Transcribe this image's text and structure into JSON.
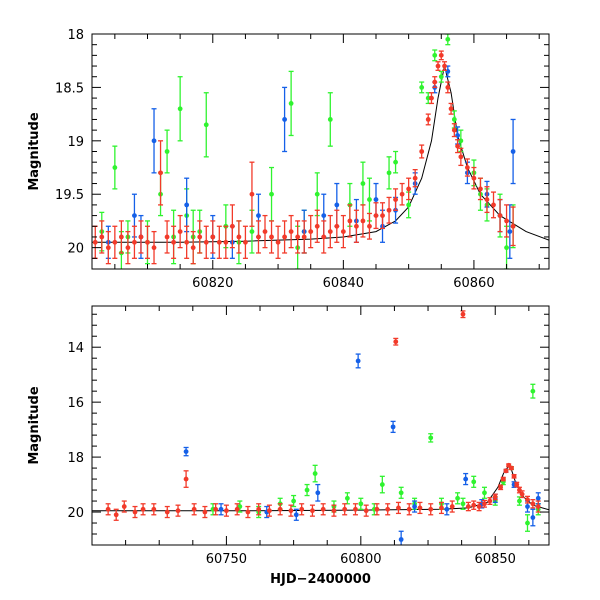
{
  "colors": {
    "green": "#2ff32f",
    "blue": "#1560e8",
    "red": "#f23a2a",
    "model_line": "#000000",
    "axes": "#000000"
  },
  "chart_data": [
    {
      "type": "scatter",
      "panel": "top",
      "ylabel": "Magnitude",
      "xlabel": "",
      "xlim": [
        60801.5,
        60871.5
      ],
      "ylim": [
        20.2,
        18.0
      ],
      "y_inverted": true,
      "x_ticks": [
        60820,
        60840,
        60860
      ],
      "x_tick_labels": [
        "60820",
        "60840",
        "60860"
      ],
      "y_ticks": [
        18,
        18.5,
        19,
        19.5,
        20
      ],
      "y_tick_labels": [
        "18",
        "18.5",
        "19",
        "19.5",
        "20"
      ],
      "error_bars": true,
      "model_curve": {
        "x": [
          60801.5,
          60815,
          60825,
          60835,
          60840,
          60845,
          60848,
          60850,
          60852,
          60853.5,
          60854.5,
          60855.5,
          60856.5,
          60857.5,
          60859,
          60861,
          60864,
          60868,
          60871.5
        ],
        "y": [
          19.95,
          19.95,
          19.94,
          19.92,
          19.9,
          19.85,
          19.75,
          19.62,
          19.35,
          19.0,
          18.6,
          18.3,
          18.55,
          18.95,
          19.25,
          19.5,
          19.7,
          19.85,
          19.93
        ]
      },
      "series": [
        {
          "color": "green",
          "x": [
            60803,
            60805,
            60807,
            60810,
            60812,
            60813,
            60815,
            60817,
            60819,
            60822,
            60826,
            60829,
            60832,
            60836,
            60838,
            60841,
            60843,
            60847,
            60850,
            60852,
            60853,
            60854,
            60856,
            60858,
            60860,
            60862,
            60864,
            60866,
            60806,
            60816,
            60824,
            60834,
            60844,
            60848,
            60855,
            60857,
            60861,
            60865,
            60814,
            60818,
            60833
          ],
          "y": [
            19.85,
            19.25,
            19.9,
            19.95,
            19.5,
            19.1,
            18.7,
            19.9,
            18.85,
            19.8,
            19.85,
            19.5,
            18.65,
            19.5,
            18.8,
            19.6,
            19.4,
            19.3,
            19.6,
            18.5,
            18.6,
            18.2,
            18.05,
            19.0,
            19.3,
            19.6,
            19.7,
            19.8,
            20.05,
            19.7,
            19.95,
            19.85,
            19.55,
            19.2,
            18.4,
            18.8,
            19.5,
            20.0,
            19.9,
            19.85,
            20.0
          ],
          "err": [
            0.18,
            0.2,
            0.15,
            0.2,
            0.2,
            0.2,
            0.3,
            0.25,
            0.3,
            0.2,
            0.2,
            0.25,
            0.3,
            0.2,
            0.25,
            0.2,
            0.2,
            0.15,
            0.12,
            0.05,
            0.05,
            0.05,
            0.05,
            0.1,
            0.12,
            0.15,
            0.2,
            0.2,
            0.2,
            0.25,
            0.2,
            0.2,
            0.2,
            0.1,
            0.05,
            0.08,
            0.15,
            0.2,
            0.25,
            0.2,
            0.2
          ]
        },
        {
          "color": "blue",
          "x": [
            60804,
            60808,
            60811,
            60816,
            60820,
            60827,
            60831,
            60834,
            60839,
            60842,
            60845,
            60848,
            60851,
            60854,
            60856,
            60857.5,
            60859,
            60862,
            60864,
            60865.5,
            60866,
            60809,
            60823,
            60837,
            60846
          ],
          "y": [
            19.95,
            19.7,
            19.0,
            19.6,
            19.9,
            19.7,
            18.8,
            19.85,
            19.6,
            19.75,
            19.55,
            19.65,
            19.4,
            18.5,
            18.35,
            18.95,
            19.3,
            19.5,
            19.7,
            19.85,
            19.1,
            19.9,
            19.95,
            19.7,
            19.8
          ],
          "err": [
            0.15,
            0.2,
            0.3,
            0.25,
            0.2,
            0.2,
            0.3,
            0.2,
            0.2,
            0.2,
            0.15,
            0.12,
            0.1,
            0.05,
            0.05,
            0.08,
            0.1,
            0.12,
            0.15,
            0.25,
            0.3,
            0.2,
            0.15,
            0.2,
            0.15
          ]
        },
        {
          "color": "red",
          "x": [
            60802,
            60803,
            60804,
            60805,
            60806,
            60807,
            60808,
            60809,
            60810,
            60811,
            60812,
            60813,
            60814,
            60815,
            60816,
            60817,
            60818,
            60819,
            60820,
            60821,
            60822,
            60823,
            60824,
            60825,
            60826,
            60827,
            60828,
            60829,
            60830,
            60831,
            60832,
            60833,
            60834,
            60835,
            60836,
            60837,
            60838,
            60839,
            60840,
            60841,
            60842,
            60843,
            60844,
            60845,
            60846,
            60847,
            60848,
            60849,
            60850,
            60851,
            60852,
            60853,
            60853.5,
            60854,
            60854.5,
            60855,
            60855.5,
            60856,
            60856.5,
            60857,
            60857.5,
            60858,
            60859,
            60860,
            60861,
            60862,
            60863,
            60864,
            60865,
            60866
          ],
          "y": [
            19.95,
            19.9,
            20.0,
            19.95,
            19.9,
            20.0,
            19.95,
            19.9,
            19.95,
            20.0,
            19.3,
            19.9,
            19.95,
            19.85,
            19.95,
            20.0,
            19.9,
            19.95,
            19.9,
            19.95,
            19.95,
            19.8,
            19.9,
            19.95,
            19.5,
            19.9,
            19.85,
            19.9,
            19.95,
            19.9,
            19.85,
            19.9,
            19.9,
            19.85,
            19.8,
            19.9,
            19.85,
            19.8,
            19.85,
            19.75,
            19.8,
            19.75,
            19.8,
            19.7,
            19.7,
            19.65,
            19.55,
            19.5,
            19.45,
            19.35,
            19.1,
            18.8,
            18.6,
            18.45,
            18.3,
            18.2,
            18.3,
            18.5,
            18.7,
            18.9,
            19.05,
            19.15,
            19.25,
            19.35,
            19.45,
            19.55,
            19.6,
            19.7,
            19.75,
            19.8
          ],
          "err": [
            0.15,
            0.15,
            0.15,
            0.15,
            0.15,
            0.15,
            0.15,
            0.15,
            0.15,
            0.15,
            0.3,
            0.15,
            0.15,
            0.15,
            0.15,
            0.15,
            0.15,
            0.15,
            0.15,
            0.15,
            0.15,
            0.2,
            0.15,
            0.15,
            0.3,
            0.15,
            0.15,
            0.15,
            0.15,
            0.15,
            0.15,
            0.15,
            0.15,
            0.15,
            0.15,
            0.15,
            0.15,
            0.15,
            0.15,
            0.15,
            0.15,
            0.15,
            0.12,
            0.12,
            0.12,
            0.12,
            0.1,
            0.1,
            0.1,
            0.08,
            0.06,
            0.05,
            0.05,
            0.05,
            0.04,
            0.04,
            0.04,
            0.05,
            0.05,
            0.06,
            0.06,
            0.08,
            0.08,
            0.1,
            0.1,
            0.12,
            0.12,
            0.15,
            0.15,
            0.18
          ]
        }
      ]
    },
    {
      "type": "scatter",
      "panel": "bottom",
      "ylabel": "Magnitude",
      "xlabel": "HJD−2400000",
      "xlim": [
        60700,
        60870
      ],
      "ylim": [
        21.2,
        12.5
      ],
      "y_inverted": true,
      "x_ticks": [
        60750,
        60800,
        60850
      ],
      "x_tick_labels": [
        "60750",
        "60800",
        "60850"
      ],
      "y_ticks": [
        14,
        16,
        18,
        20
      ],
      "y_tick_labels": [
        "14",
        "16",
        "18",
        "20"
      ],
      "error_bars": true,
      "model_curve": {
        "x": [
          60700,
          60760,
          60800,
          60830,
          60840,
          60847,
          60851,
          60853.5,
          60855.5,
          60857.5,
          60860,
          60864,
          60870
        ],
        "y": [
          19.95,
          19.95,
          19.93,
          19.9,
          19.85,
          19.65,
          19.1,
          18.5,
          18.3,
          18.9,
          19.4,
          19.75,
          19.92
        ]
      },
      "series": [
        {
          "color": "green",
          "x": [
            60745,
            60755,
            60762,
            60770,
            60775,
            60780,
            60783,
            60790,
            60795,
            60800,
            60805,
            60808,
            60815,
            60820,
            60826,
            60830,
            60836,
            60838,
            60842,
            60846,
            60850,
            60853,
            60856,
            60859,
            60862,
            60864,
            60866
          ],
          "y": [
            19.9,
            19.8,
            20.0,
            19.7,
            19.6,
            19.2,
            18.6,
            19.8,
            19.5,
            19.7,
            19.9,
            19.0,
            19.3,
            19.7,
            17.3,
            19.7,
            19.5,
            19.7,
            18.9,
            19.3,
            19.6,
            18.9,
            18.4,
            19.6,
            20.4,
            15.6,
            19.9
          ],
          "err": [
            0.2,
            0.2,
            0.2,
            0.2,
            0.2,
            0.2,
            0.3,
            0.2,
            0.2,
            0.2,
            0.2,
            0.3,
            0.2,
            0.2,
            0.15,
            0.2,
            0.2,
            0.2,
            0.2,
            0.2,
            0.15,
            0.1,
            0.05,
            0.15,
            0.3,
            0.25,
            0.2
          ]
        },
        {
          "color": "blue",
          "x": [
            60735,
            60748,
            60765,
            60776,
            60784,
            60799,
            60812,
            60815,
            60820,
            60832,
            60839,
            60845,
            60850,
            60854,
            60857,
            60862,
            60864,
            60866
          ],
          "y": [
            17.8,
            19.9,
            20.0,
            20.1,
            19.3,
            14.5,
            16.9,
            21.0,
            19.8,
            19.9,
            18.8,
            19.7,
            19.5,
            18.5,
            19.0,
            19.8,
            20.2,
            19.5
          ],
          "err": [
            0.15,
            0.2,
            0.2,
            0.2,
            0.3,
            0.25,
            0.2,
            0.3,
            0.2,
            0.2,
            0.2,
            0.15,
            0.15,
            0.05,
            0.1,
            0.2,
            0.3,
            0.2
          ]
        },
        {
          "color": "red",
          "x": [
            60706,
            60709,
            60712,
            60716,
            60719,
            60723,
            60728,
            60732,
            60735,
            60738,
            60742,
            60746,
            60750,
            60754,
            60758,
            60762,
            60766,
            60770,
            60774,
            60778,
            60782,
            60786,
            60790,
            60794,
            60798,
            60802,
            60806,
            60810,
            60813,
            60814,
            60818,
            60822,
            60826,
            60830,
            60834,
            60838,
            60840,
            60842,
            60844,
            60846,
            60848,
            60850,
            60852,
            60853,
            60854,
            60855,
            60856,
            60857,
            60858,
            60859,
            60860,
            60862,
            60864,
            60866
          ],
          "y": [
            19.9,
            20.1,
            19.8,
            20.0,
            19.9,
            19.9,
            20.0,
            19.95,
            18.8,
            19.9,
            20.0,
            19.9,
            19.95,
            19.9,
            20.0,
            19.9,
            19.95,
            19.9,
            19.95,
            19.9,
            19.95,
            19.9,
            19.95,
            19.9,
            19.9,
            19.95,
            19.9,
            19.9,
            13.8,
            19.85,
            19.9,
            19.85,
            19.9,
            19.85,
            19.8,
            12.8,
            19.8,
            19.75,
            19.8,
            19.7,
            19.6,
            19.45,
            19.1,
            18.8,
            18.5,
            18.3,
            18.4,
            18.7,
            19.0,
            19.2,
            19.35,
            19.55,
            19.7,
            19.8
          ],
          "err": [
            0.2,
            0.2,
            0.2,
            0.2,
            0.2,
            0.2,
            0.2,
            0.2,
            0.3,
            0.2,
            0.2,
            0.2,
            0.2,
            0.2,
            0.2,
            0.2,
            0.2,
            0.2,
            0.2,
            0.2,
            0.2,
            0.2,
            0.2,
            0.2,
            0.2,
            0.2,
            0.2,
            0.2,
            0.12,
            0.2,
            0.2,
            0.2,
            0.2,
            0.2,
            0.2,
            0.12,
            0.15,
            0.15,
            0.15,
            0.12,
            0.12,
            0.1,
            0.08,
            0.06,
            0.05,
            0.05,
            0.05,
            0.06,
            0.08,
            0.1,
            0.12,
            0.12,
            0.15,
            0.2
          ]
        }
      ]
    }
  ]
}
